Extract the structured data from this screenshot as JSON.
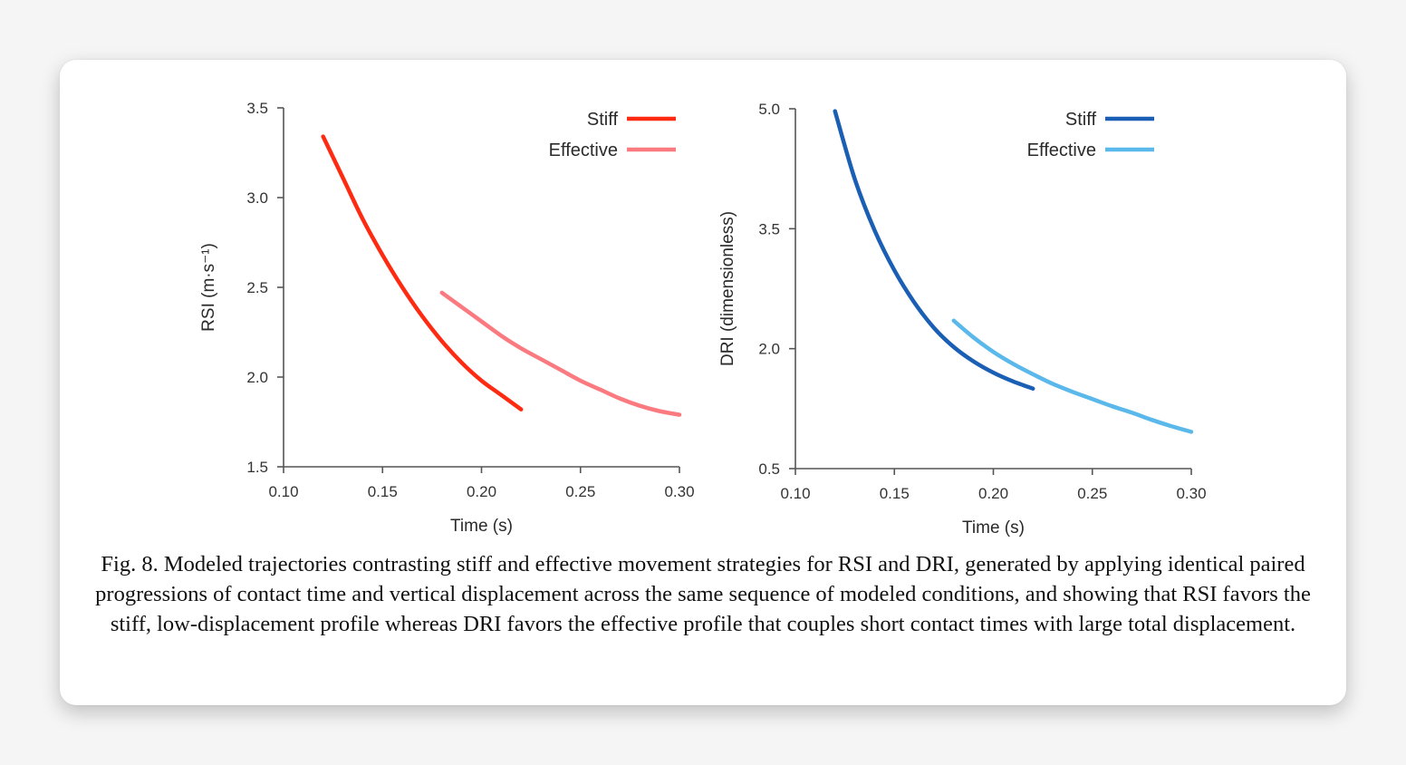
{
  "chart_data": [
    {
      "type": "line",
      "title": "",
      "xlabel": "Time (s)",
      "ylabel": "RSI (m·s⁻¹)",
      "xlim": [
        0.1,
        0.3
      ],
      "ylim": [
        1.5,
        3.5
      ],
      "xticks": [
        "0.10",
        "0.15",
        "0.20",
        "0.25",
        "0.30"
      ],
      "yticks": [
        "1.5",
        "2.0",
        "2.5",
        "3.0",
        "3.5"
      ],
      "xtick_values": [
        0.1,
        0.15,
        0.2,
        0.25,
        0.3
      ],
      "ytick_values": [
        1.5,
        2.0,
        2.5,
        3.0,
        3.5
      ],
      "grid": false,
      "legend_position": "top-right",
      "series": [
        {
          "name": "Stiff",
          "color": "#ff2a12",
          "x": [
            0.12,
            0.13,
            0.14,
            0.15,
            0.16,
            0.17,
            0.18,
            0.19,
            0.2,
            0.21,
            0.22
          ],
          "y": [
            3.34,
            3.11,
            2.88,
            2.68,
            2.5,
            2.34,
            2.2,
            2.08,
            1.98,
            1.9,
            1.82
          ]
        },
        {
          "name": "Effective",
          "color": "#fb7a80",
          "x": [
            0.18,
            0.19,
            0.2,
            0.21,
            0.22,
            0.23,
            0.24,
            0.25,
            0.26,
            0.27,
            0.28,
            0.29,
            0.3
          ],
          "y": [
            2.47,
            2.39,
            2.31,
            2.23,
            2.16,
            2.1,
            2.04,
            1.98,
            1.93,
            1.88,
            1.84,
            1.81,
            1.79
          ]
        }
      ]
    },
    {
      "type": "line",
      "title": "",
      "xlabel": "Time (s)",
      "ylabel": "DRI (dimensionless)",
      "xlim": [
        0.1,
        0.3
      ],
      "ylim": [
        0.5,
        5.0
      ],
      "xticks": [
        "0.10",
        "0.15",
        "0.20",
        "0.25",
        "0.30"
      ],
      "yticks": [
        "0.5",
        "2.0",
        "3.5",
        "5.0"
      ],
      "xtick_values": [
        0.1,
        0.15,
        0.2,
        0.25,
        0.3
      ],
      "ytick_values": [
        0.5,
        2.0,
        3.5,
        5.0
      ],
      "grid": false,
      "legend_position": "top-right",
      "series": [
        {
          "name": "Stiff",
          "color": "#1a5fb4",
          "x": [
            0.12,
            0.13,
            0.14,
            0.15,
            0.16,
            0.17,
            0.18,
            0.19,
            0.2,
            0.21,
            0.22
          ],
          "y": [
            4.97,
            4.12,
            3.48,
            2.98,
            2.58,
            2.26,
            2.02,
            1.84,
            1.7,
            1.59,
            1.5
          ]
        },
        {
          "name": "Effective",
          "color": "#5ab8ea",
          "x": [
            0.18,
            0.19,
            0.2,
            0.21,
            0.22,
            0.23,
            0.24,
            0.25,
            0.26,
            0.27,
            0.28,
            0.29,
            0.3
          ],
          "y": [
            2.35,
            2.14,
            1.96,
            1.81,
            1.68,
            1.56,
            1.46,
            1.37,
            1.28,
            1.2,
            1.11,
            1.03,
            0.96
          ]
        }
      ]
    }
  ],
  "caption": "Fig. 8. Modeled trajectories contrasting stiff and effective movement strategies for RSI and DRI, generated by applying identical paired progressions of contact time and vertical displacement across the same sequence of modeled conditions, and showing that RSI favors the stiff, low-displacement profile whereas DRI favors the effective profile that couples short contact times with large total displacement."
}
